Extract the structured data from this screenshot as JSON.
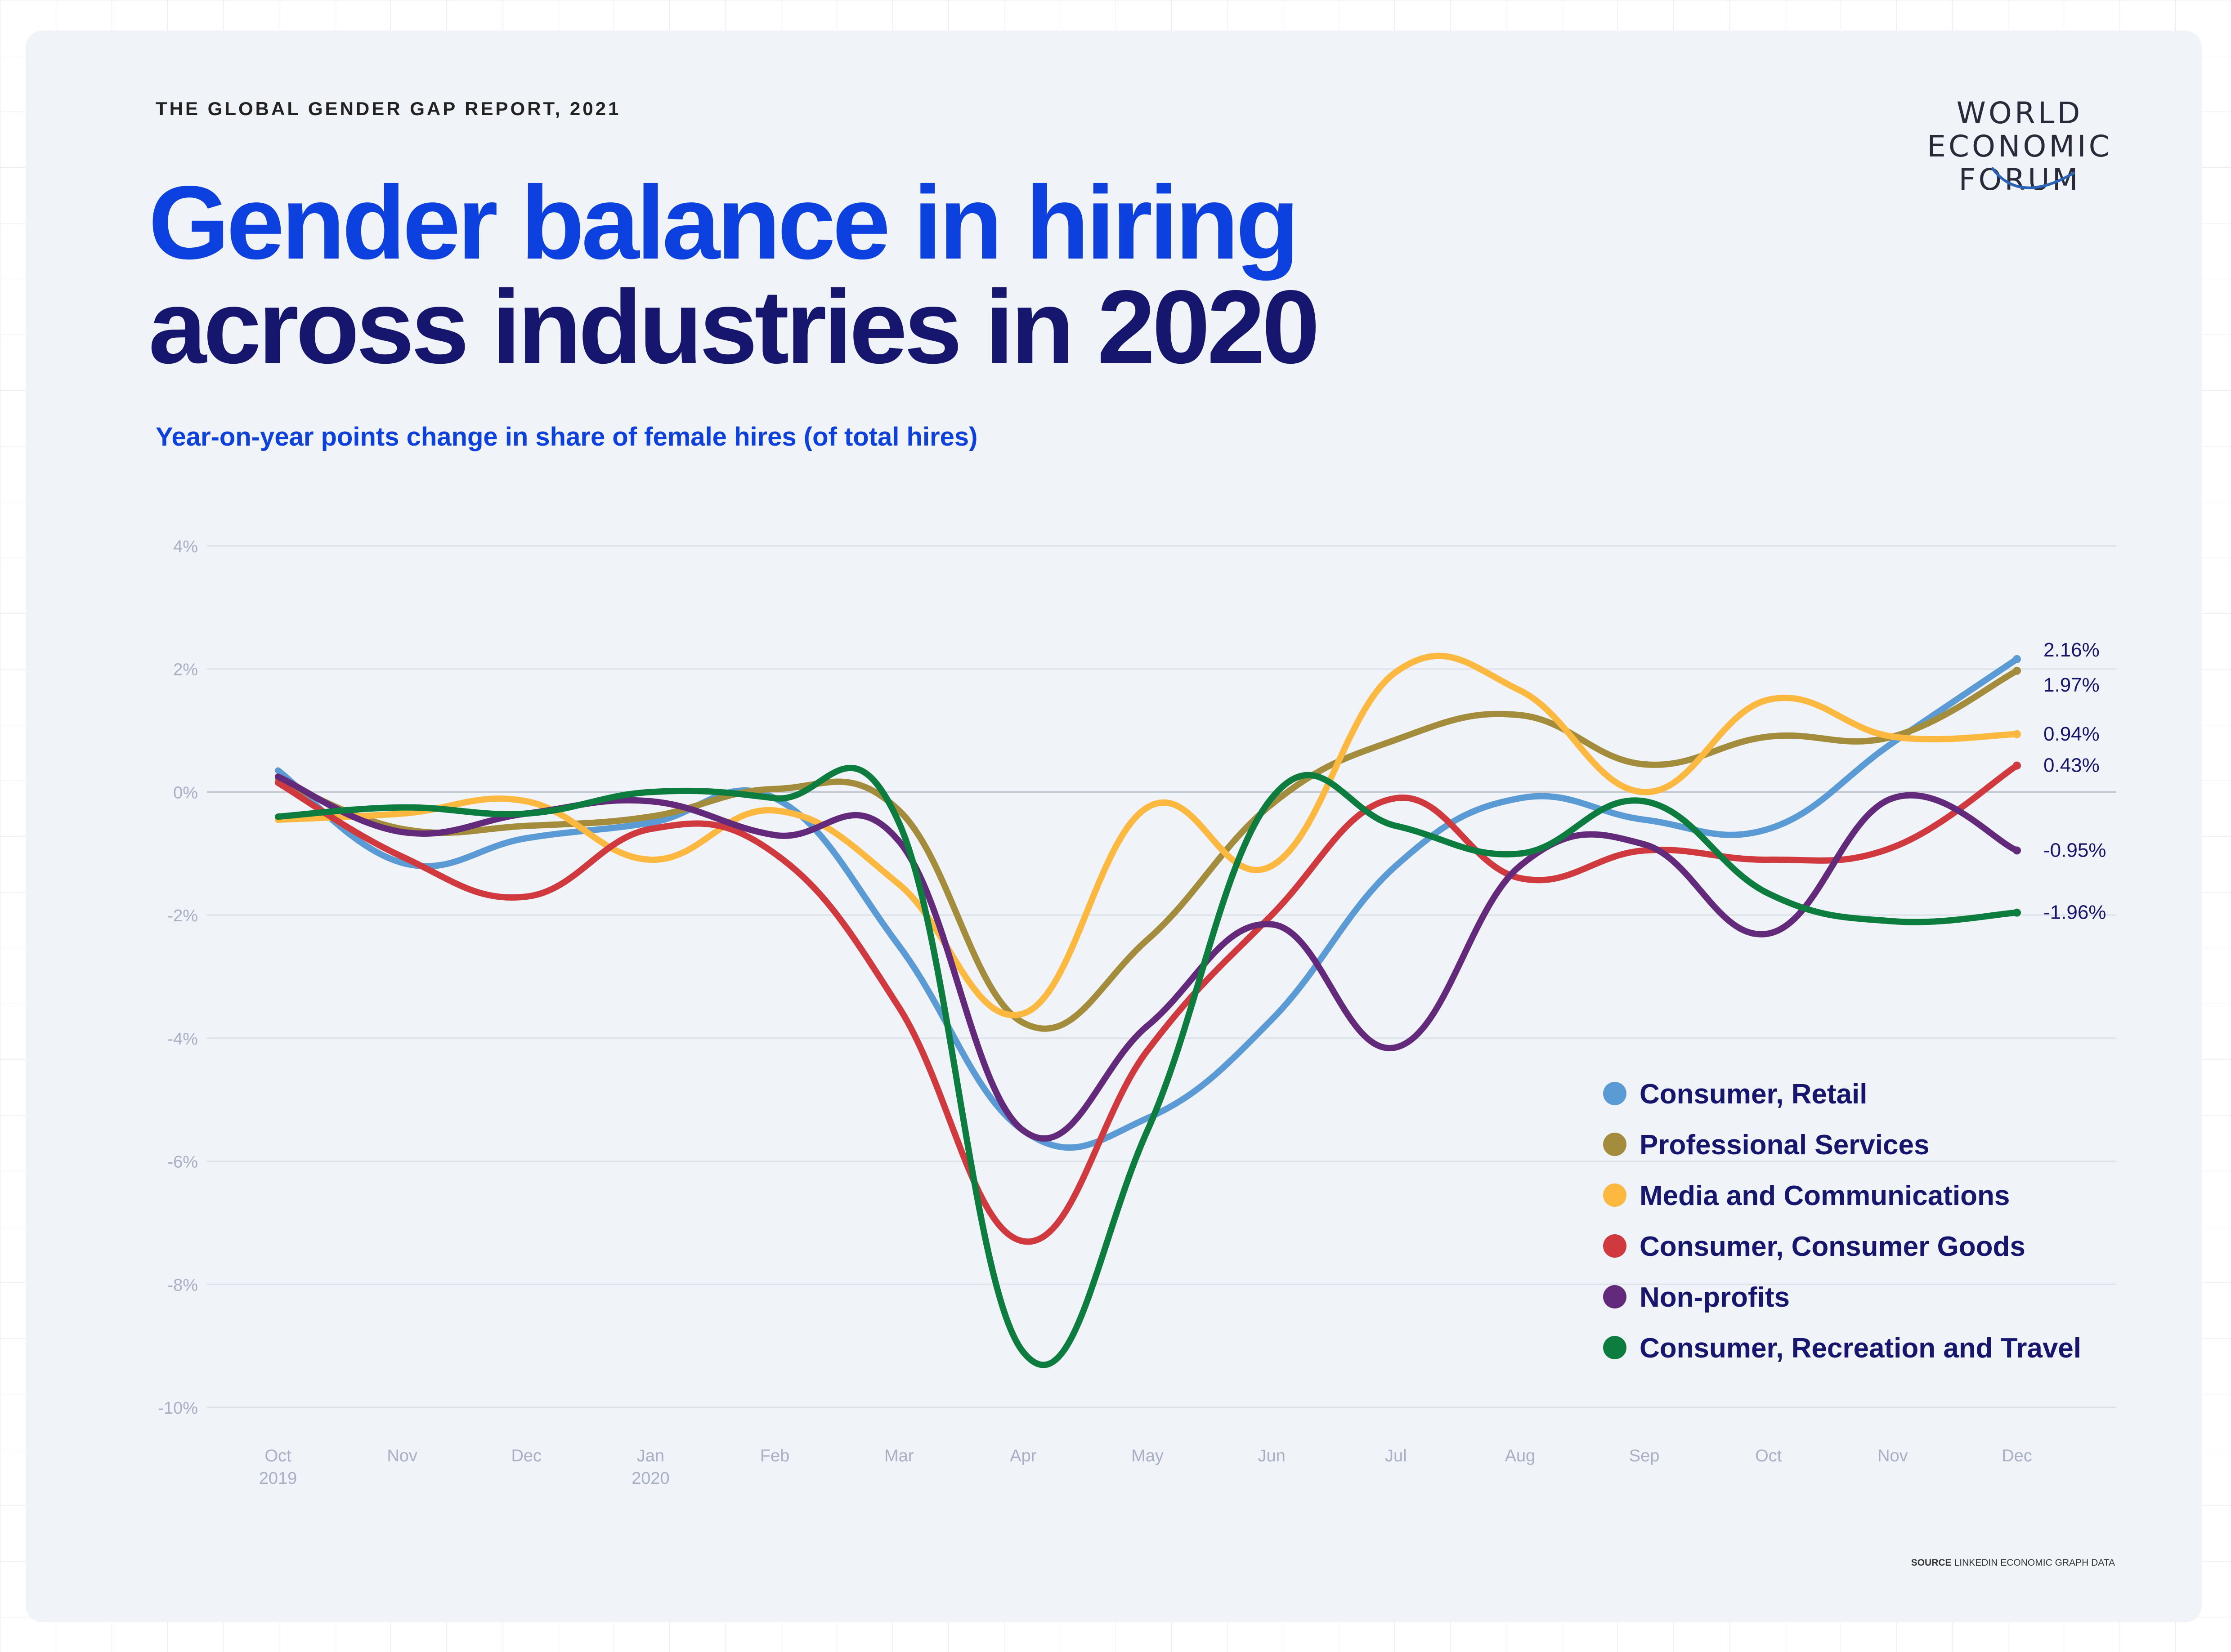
{
  "header": {
    "report_label": "THE GLOBAL GENDER GAP REPORT, 2021",
    "title_line1": "Gender balance in hiring",
    "title_line2": "across industries in 2020",
    "subtitle": "Year-on-year points change in share of female hires (of total hires)"
  },
  "logo": {
    "line1": "WORLD",
    "line2": "ECONOMIC",
    "line3": "FORUM"
  },
  "source": {
    "label": "SOURCE",
    "text": "LINKEDIN ECONOMIC GRAPH DATA"
  },
  "colors": {
    "title_blue": "#0c41e0",
    "title_navy": "#16166e",
    "card_bg": "#f0f3f7"
  },
  "chart_data": {
    "type": "line",
    "title": "Gender balance in hiring across industries in 2020",
    "subtitle": "Year-on-year points change in share of female hires (of total hires)",
    "xlabel": "",
    "ylabel": "",
    "x": [
      "Oct 2019",
      "Nov",
      "Dec",
      "Jan 2020",
      "Feb",
      "Mar",
      "Apr",
      "May",
      "Jun",
      "Jul",
      "Aug",
      "Sep",
      "Oct",
      "Nov",
      "Dec"
    ],
    "x_tick_labels": [
      [
        "Oct",
        "2019"
      ],
      [
        "Nov",
        ""
      ],
      [
        "Dec",
        ""
      ],
      [
        "Jan",
        "2020"
      ],
      [
        "Feb",
        ""
      ],
      [
        "Mar",
        ""
      ],
      [
        "Apr",
        ""
      ],
      [
        "May",
        ""
      ],
      [
        "Jun",
        ""
      ],
      [
        "Jul",
        ""
      ],
      [
        "Aug",
        ""
      ],
      [
        "Sep",
        ""
      ],
      [
        "Oct",
        ""
      ],
      [
        "Nov",
        ""
      ],
      [
        "Dec",
        ""
      ]
    ],
    "ylim": [
      -10,
      4
    ],
    "y_ticks": [
      4,
      2,
      0,
      -2,
      -4,
      -6,
      -8,
      -10
    ],
    "y_tick_labels": [
      "4%",
      "2%",
      "0%",
      "-2%",
      "-4%",
      "-6%",
      "-8%",
      "-10%"
    ],
    "grid": true,
    "legend_position": "bottom-right",
    "series": [
      {
        "name": "Consumer, Retail",
        "color": "#5b9bd5",
        "values": [
          0.35,
          -1.15,
          -0.75,
          -0.5,
          -0.1,
          -2.5,
          -5.5,
          -5.3,
          -3.7,
          -1.2,
          -0.1,
          -0.45,
          -0.6,
          0.8,
          2.16
        ],
        "end_label": "2.16%"
      },
      {
        "name": "Professional Services",
        "color": "#a38d3c",
        "values": [
          0.2,
          -0.6,
          -0.55,
          -0.4,
          0.05,
          -0.3,
          -3.75,
          -2.4,
          -0.2,
          0.85,
          1.25,
          0.45,
          0.9,
          0.9,
          1.97
        ],
        "end_label": "1.97%"
      },
      {
        "name": "Media and Communications",
        "color": "#fdb840",
        "values": [
          -0.45,
          -0.35,
          -0.15,
          -1.1,
          -0.3,
          -1.5,
          -3.6,
          -0.25,
          -1.2,
          1.95,
          1.65,
          0.0,
          1.5,
          0.9,
          0.94
        ],
        "end_label": "0.94%"
      },
      {
        "name": "Consumer, Consumer Goods",
        "color": "#d03a3e",
        "values": [
          0.15,
          -1.05,
          -1.7,
          -0.6,
          -1.0,
          -3.5,
          -7.3,
          -4.2,
          -2.0,
          -0.1,
          -1.4,
          -0.95,
          -1.1,
          -0.9,
          0.43
        ],
        "end_label": "0.43%"
      },
      {
        "name": "Non-profits",
        "color": "#632a7c",
        "values": [
          0.25,
          -0.65,
          -0.35,
          -0.15,
          -0.7,
          -0.8,
          -5.5,
          -3.8,
          -2.15,
          -4.15,
          -1.2,
          -0.85,
          -2.3,
          -0.1,
          -0.95
        ],
        "end_label": "-0.95%"
      },
      {
        "name": "Consumer, Recreation and Travel",
        "color": "#0c7d3e",
        "values": [
          -0.4,
          -0.25,
          -0.35,
          0.0,
          -0.1,
          -0.5,
          -9.1,
          -5.5,
          -0.1,
          -0.55,
          -1.0,
          -0.15,
          -1.65,
          -2.1,
          -1.96
        ],
        "end_label": "-1.96%"
      }
    ]
  }
}
